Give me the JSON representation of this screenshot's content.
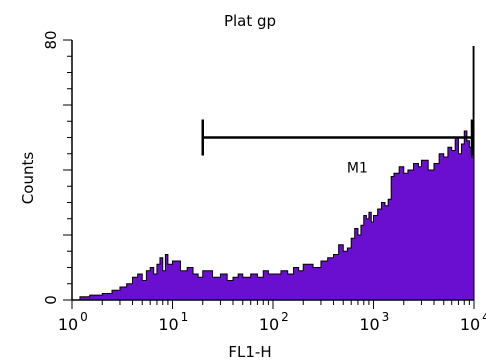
{
  "chart_data": {
    "type": "area",
    "title": "Plat gp",
    "xlabel": "FL1-H",
    "ylabel": "Counts",
    "x_scale": "log",
    "xlim": [
      1,
      10000
    ],
    "ylim": [
      0,
      80
    ],
    "x_ticks": [
      {
        "base": "10",
        "exp": "0"
      },
      {
        "base": "10",
        "exp": "1"
      },
      {
        "base": "10",
        "exp": "2"
      },
      {
        "base": "10",
        "exp": "3"
      },
      {
        "base": "10",
        "exp": "4"
      }
    ],
    "y_ticks": [
      "0",
      "80"
    ],
    "fill_color": "#6a0fcf",
    "grid": false,
    "series": [
      {
        "x": [
          1.0,
          1.2,
          1.5,
          2.0,
          2.5,
          3.0,
          3.5,
          4.0,
          4.5,
          5.0,
          5.5,
          6.0,
          6.5,
          7.0,
          7.5,
          8.0,
          8.5,
          9.0,
          10,
          12,
          14,
          16,
          18,
          20,
          25,
          30,
          35,
          40,
          45,
          50,
          60,
          70,
          80,
          90,
          100,
          120,
          140,
          160,
          180,
          200,
          250,
          300,
          350,
          400,
          450,
          500,
          550,
          600,
          650,
          700,
          750,
          800,
          850,
          900,
          950,
          1000,
          1100,
          1200,
          1300,
          1400,
          1500,
          1600,
          1800,
          2000,
          2200,
          2500,
          2800,
          3000,
          3500,
          4000,
          4500,
          5000,
          5500,
          6000,
          6500,
          7000,
          7500,
          8000,
          8500,
          9000,
          9500,
          9800,
          10000
        ],
        "y": [
          0,
          1,
          1.5,
          2,
          3,
          4,
          5,
          7,
          8,
          6,
          9,
          10,
          8,
          11,
          13,
          9,
          14,
          11,
          12,
          9,
          10,
          8,
          7,
          9,
          7,
          8,
          6,
          7,
          8,
          7,
          8,
          7,
          9,
          8,
          8,
          9,
          8,
          10,
          9,
          11,
          10,
          12,
          13,
          14,
          17,
          15,
          16,
          19,
          22,
          20,
          23,
          26,
          25,
          27,
          24,
          26,
          28,
          30,
          29,
          31,
          38,
          39,
          41,
          39,
          40,
          42,
          41,
          43,
          40,
          42,
          45,
          44,
          47,
          46,
          50,
          45,
          48,
          52,
          49,
          47,
          44,
          78,
          47
        ]
      }
    ],
    "marker": {
      "label": "M1",
      "x_start": 20,
      "x_end": 10000,
      "y": 50
    }
  }
}
